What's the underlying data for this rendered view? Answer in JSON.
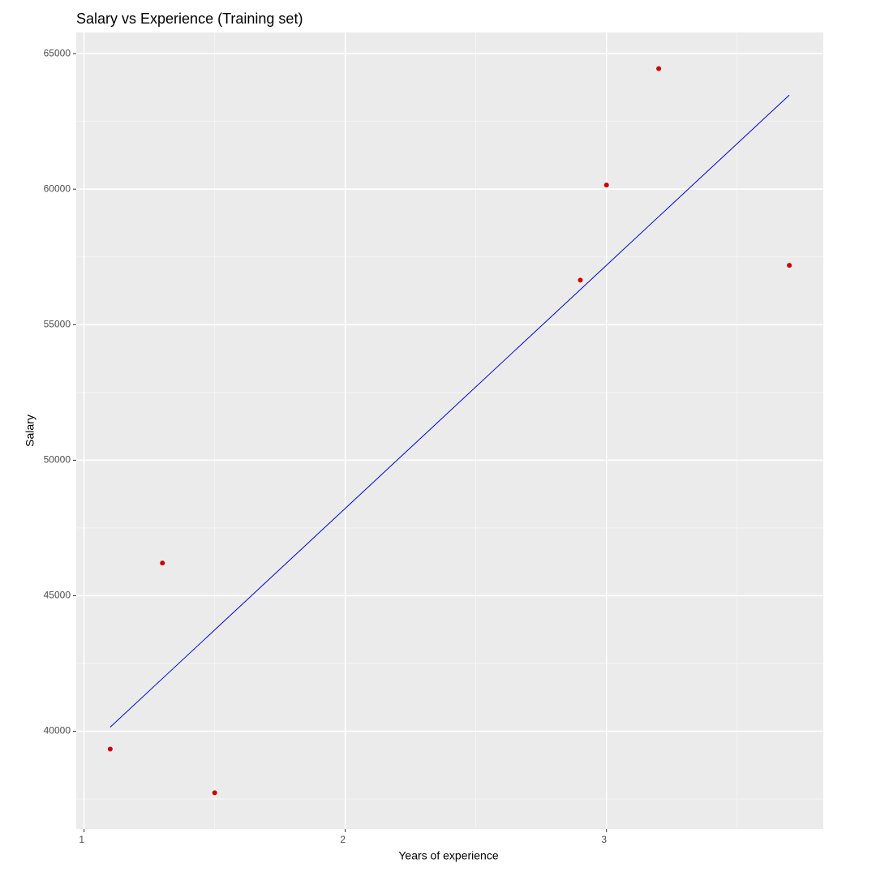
{
  "chart_data": {
    "type": "scatter",
    "title": "Salary vs Experience (Training set)",
    "xlabel": "Years of experience",
    "ylabel": "Salary",
    "xlim": [
      0.97,
      3.83
    ],
    "ylim": [
      36395,
      65781
    ],
    "xticks": [
      1,
      2,
      3
    ],
    "yticks": [
      40000,
      45000,
      50000,
      55000,
      60000,
      65000
    ],
    "xminor": [
      1.5,
      2.5,
      3.5
    ],
    "yminor": [
      37500,
      42500,
      47500,
      52500,
      57500,
      62500
    ],
    "grid": true,
    "series": [
      {
        "name": "Training set",
        "color": "#cc0000",
        "x": [
          1.1,
          1.3,
          1.5,
          2.9,
          3.0,
          3.2,
          3.7
        ],
        "values": [
          39343,
          46205,
          37731,
          56642,
          60150,
          64445,
          57189
        ]
      },
      {
        "name": "Regression line",
        "color": "#0000cc",
        "type": "line",
        "x": [
          1.1,
          1.3,
          1.5,
          2.9,
          3.0,
          3.2,
          3.7
        ],
        "values": [
          40150,
          41944,
          43738,
          56295,
          57192,
          58986,
          63470
        ]
      }
    ]
  }
}
